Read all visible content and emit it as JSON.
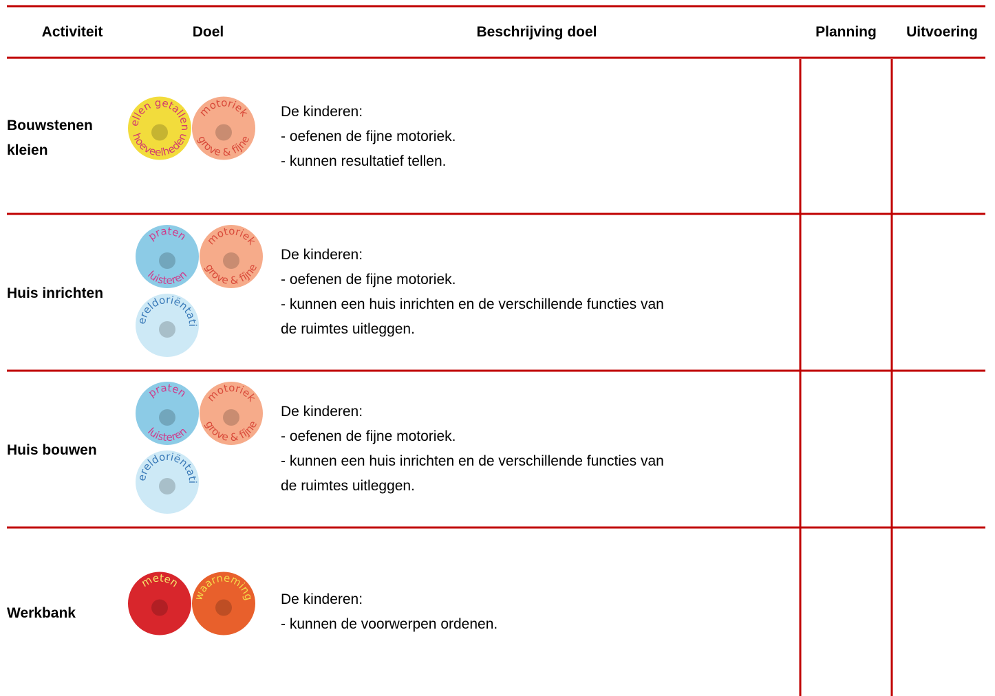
{
  "table": {
    "header": [
      "Activiteit",
      "Doel",
      "Beschrijving doel",
      "Planning",
      "Uitvoering"
    ],
    "rows": [
      {
        "activity": "Bouwstenen kleien",
        "icons": [
          {
            "top": "tellen getallen",
            "bottom": "hoeveelheden",
            "color": "#f2dc3c",
            "ink": "#d23a6e"
          },
          {
            "top": "motoriek",
            "bottom": "grove & fijne",
            "color": "#f6ab8a",
            "ink": "#d94a3a"
          }
        ],
        "description": [
          "De kinderen:",
          "- oefenen de fijne motoriek.",
          "- kunnen resultatief tellen."
        ]
      },
      {
        "activity": "Huis inrichten",
        "icons": [
          {
            "top": "praten",
            "bottom": "luisteren",
            "color": "#8ccbe6",
            "ink": "#d03a8a"
          },
          {
            "top": "motoriek",
            "bottom": "grove & fijne",
            "color": "#f6ab8a",
            "ink": "#d94a3a"
          },
          {
            "top": "wereldoriëntatie",
            "bottom": "",
            "color": "#cde9f6",
            "ink": "#3a7ab8"
          }
        ],
        "description": [
          "De kinderen:",
          "- oefenen de fijne motoriek.",
          "- kunnen een huis inrichten en de verschillende functies van",
          "de ruimtes uitleggen."
        ]
      },
      {
        "activity": "Huis bouwen",
        "icons": [
          {
            "top": "praten",
            "bottom": "luisteren",
            "color": "#8ccbe6",
            "ink": "#d03a8a"
          },
          {
            "top": "motoriek",
            "bottom": "grove & fijne",
            "color": "#f6ab8a",
            "ink": "#d94a3a"
          },
          {
            "top": "wereldoriëntatie",
            "bottom": "",
            "color": "#cde9f6",
            "ink": "#3a7ab8"
          }
        ],
        "description": [
          "De kinderen:",
          "- oefenen de fijne motoriek.",
          "- kunnen een huis inrichten en de verschillende functies van",
          "de ruimtes uitleggen."
        ]
      },
      {
        "activity": "Werkbank",
        "icons": [
          {
            "top": "meten",
            "bottom": "",
            "color": "#d8262c",
            "ink": "#f5e36a"
          },
          {
            "top": "waarneming",
            "bottom": "",
            "color": "#e8602c",
            "ink": "#f5d84a"
          }
        ],
        "description": [
          "De kinderen:",
          "- kunnen de voorwerpen ordenen."
        ]
      }
    ]
  }
}
